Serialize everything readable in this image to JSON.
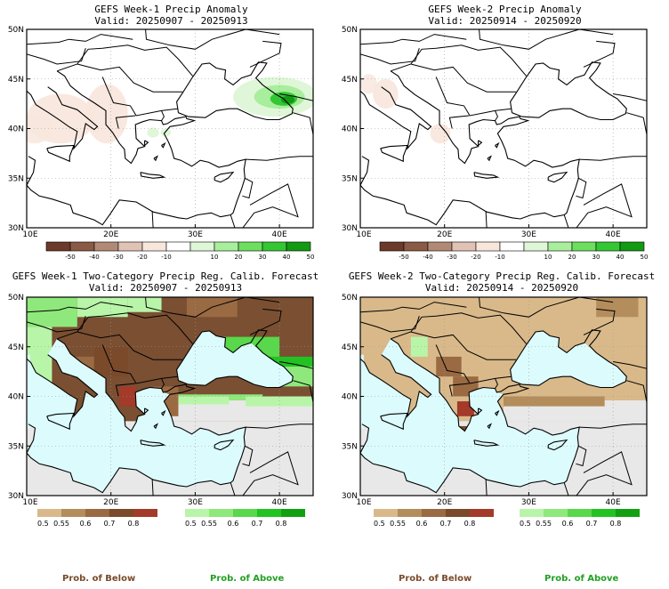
{
  "panels": [
    {
      "id": "p1",
      "title": "GEFS Week-1 Precip Anomaly",
      "valid": "Valid: 20250907 - 20250913",
      "lat_labels": [
        "50N",
        "45N",
        "40N",
        "35N",
        "30N"
      ],
      "lon_labels": [
        "10E",
        "20E",
        "30E",
        "40E"
      ],
      "colorbar_ticks": [
        "-50",
        "-40",
        "-30",
        "-20",
        "-10",
        "10",
        "20",
        "30",
        "40",
        "50"
      ]
    },
    {
      "id": "p2",
      "title": "GEFS Week-2 Precip Anomaly",
      "valid": "Valid: 20250914 - 20250920",
      "lat_labels": [
        "50N",
        "45N",
        "40N",
        "35N",
        "30N"
      ],
      "lon_labels": [
        "10E",
        "20E",
        "30E",
        "40E"
      ],
      "colorbar_ticks": [
        "-50",
        "-40",
        "-30",
        "-20",
        "-10",
        "10",
        "20",
        "30",
        "40",
        "50"
      ]
    },
    {
      "id": "p3",
      "title": "GEFS Week-1 Two-Category Precip Reg. Calib. Forecast",
      "valid": "Valid: 20250907 - 20250913",
      "lat_labels": [
        "50N",
        "45N",
        "40N",
        "35N",
        "30N"
      ],
      "lon_labels": [
        "10E",
        "20E",
        "30E",
        "40E"
      ],
      "below_ticks": [
        "0.5",
        "0.55",
        "0.6",
        "0.7",
        "0.8"
      ],
      "above_ticks": [
        "0.5",
        "0.55",
        "0.6",
        "0.7",
        "0.8"
      ]
    },
    {
      "id": "p4",
      "title": "GEFS Week-2 Two-Category Precip Reg. Calib. Forecast",
      "valid": "Valid: 20250914 - 20250920",
      "lat_labels": [
        "50N",
        "45N",
        "40N",
        "35N",
        "30N"
      ],
      "lon_labels": [
        "10E",
        "20E",
        "30E",
        "40E"
      ],
      "below_ticks": [
        "0.5",
        "0.55",
        "0.6",
        "0.7",
        "0.8"
      ],
      "above_ticks": [
        "0.5",
        "0.55",
        "0.6",
        "0.7",
        "0.8"
      ]
    }
  ],
  "legend": {
    "below_label": "Prob. of Below",
    "above_label": "Prob. of Above"
  },
  "colors": {
    "anomaly_scale": [
      "#6b3a2a",
      "#8a5a44",
      "#b08a76",
      "#e0c3b4",
      "#f8e6dc",
      "#ffffff",
      "#dff7d8",
      "#a8ee9c",
      "#6ddf5f",
      "#33c733",
      "#129a12"
    ],
    "below_scale": [
      "#d9b98a",
      "#b48d5c",
      "#9a6a43",
      "#7a4a2a",
      "#a33a2a"
    ],
    "above_scale": [
      "#b8f5a8",
      "#8fe87c",
      "#58d84a",
      "#22c222",
      "#11a011"
    ],
    "ocean": "#dcfbfd",
    "dry_land": "#e8e8e8",
    "below_label_color": "#7a4a2a",
    "above_label_color": "#22a022"
  }
}
